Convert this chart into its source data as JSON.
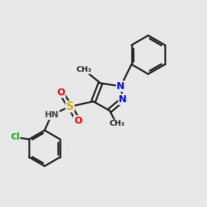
{
  "background_color": "#e8e8e8",
  "bond_color": "#1a1a1a",
  "bond_width": 1.8,
  "atom_colors": {
    "N": "#0000ff",
    "O": "#ff0000",
    "S": "#ccaa00",
    "Cl": "#00aa00",
    "H": "#444444",
    "C": "#1a1a1a"
  },
  "font_size": 9,
  "figsize": [
    3.0,
    3.0
  ],
  "dpi": 100,
  "xlim": [
    0,
    10
  ],
  "ylim": [
    0,
    10
  ]
}
